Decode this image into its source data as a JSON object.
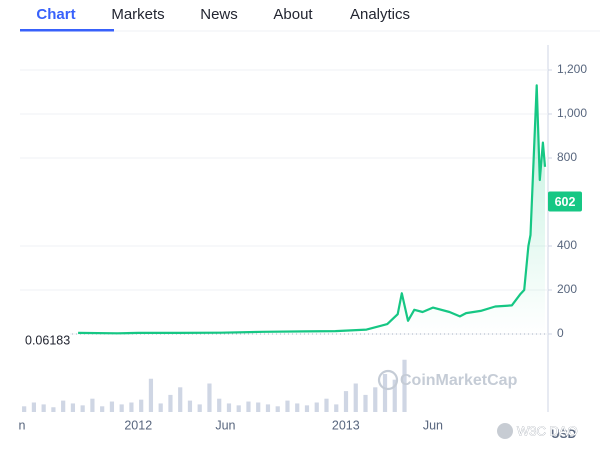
{
  "tabs": [
    {
      "label": "Chart",
      "active": true
    },
    {
      "label": "Markets",
      "active": false
    },
    {
      "label": "News",
      "active": false
    },
    {
      "label": "About",
      "active": false
    },
    {
      "label": "Analytics",
      "active": false
    }
  ],
  "chart_data": {
    "type": "line",
    "series": [
      {
        "color": "#16c784",
        "x": [
          2011.71,
          2011.9,
          2012.0,
          2012.2,
          2012.4,
          2012.6,
          2012.8,
          2012.95,
          2013.1,
          2013.2,
          2013.25,
          2013.27,
          2013.3,
          2013.33,
          2013.37,
          2013.42,
          2013.5,
          2013.55,
          2013.58,
          2013.65,
          2013.72,
          2013.8,
          2013.84,
          2013.86,
          2013.88,
          2013.89,
          2013.92,
          2013.935,
          2013.95,
          2013.96
        ],
        "values": [
          5,
          3,
          5,
          5,
          6,
          10,
          12,
          13,
          20,
          45,
          90,
          185,
          60,
          110,
          100,
          120,
          100,
          80,
          95,
          105,
          125,
          130,
          180,
          200,
          400,
          450,
          1130,
          700,
          870,
          760
        ]
      }
    ],
    "volume": {
      "color": "#cfd6e4",
      "ylim": [
        0,
        60
      ],
      "x": [
        2011.45,
        2011.497,
        2011.544,
        2011.591,
        2011.638,
        2011.685,
        2011.732,
        2011.779,
        2011.826,
        2011.873,
        2011.92,
        2011.967,
        2012.014,
        2012.061,
        2012.108,
        2012.155,
        2012.202,
        2012.249,
        2012.296,
        2012.343,
        2012.39,
        2012.437,
        2012.484,
        2012.531,
        2012.578,
        2012.625,
        2012.672,
        2012.719,
        2012.766,
        2012.813,
        2012.86,
        2012.907,
        2012.954,
        2013.001,
        2013.048,
        2013.095,
        2013.142,
        2013.189,
        2013.236,
        2013.283
      ],
      "values": [
        6,
        10,
        8,
        5,
        12,
        9,
        7,
        14,
        6,
        11,
        8,
        10,
        13,
        35,
        9,
        18,
        26,
        12,
        8,
        30,
        14,
        9,
        7,
        11,
        10,
        8,
        6,
        12,
        9,
        7,
        10,
        14,
        8,
        22,
        30,
        18,
        26,
        40,
        34,
        55
      ]
    },
    "xlim": [
      2011.43,
      2013.96
    ],
    "ylim": [
      0,
      1300
    ],
    "xticks": [
      {
        "value": 2011.42,
        "label": "n"
      },
      {
        "value": 2012,
        "label": "2012"
      },
      {
        "value": 2012.42,
        "label": "Jun"
      },
      {
        "value": 2013,
        "label": "2013"
      },
      {
        "value": 2013.42,
        "label": "Jun"
      }
    ],
    "yticks": [
      0,
      200,
      400,
      800,
      {
        "value": 1000,
        "label": "1,000"
      },
      {
        "value": 1200,
        "label": "1,200"
      }
    ],
    "grid": true,
    "current_price": 602,
    "start_price": 0.06183,
    "currency": "USD",
    "watermark": "CoinMarketCap"
  },
  "overlay_watermark": "W3C DAO"
}
